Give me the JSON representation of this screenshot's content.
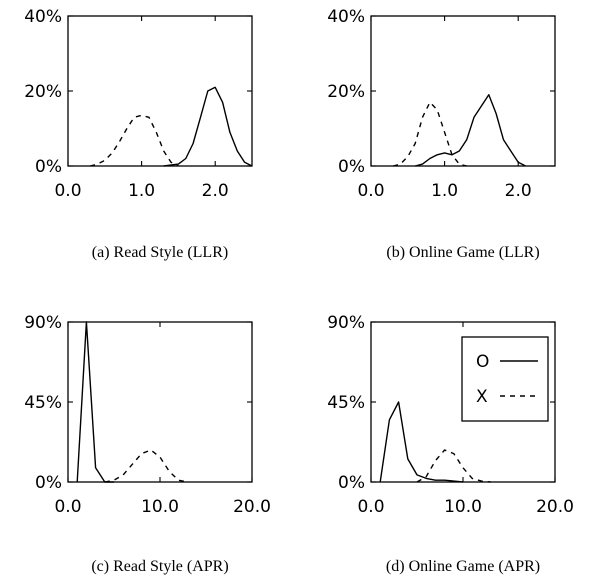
{
  "chart_data": [
    {
      "type": "line",
      "caption": "(a) Read Style (LLR)",
      "xlim": [
        0,
        2.5
      ],
      "ylim": [
        0,
        40
      ],
      "xticks": [
        0,
        1,
        2
      ],
      "xtick_labels": [
        "0.0",
        "1.0",
        "2.0"
      ],
      "yticks": [
        0,
        20,
        40
      ],
      "ytick_labels": [
        "0%",
        "20%",
        "40%"
      ],
      "series": [
        {
          "legend_label": "O",
          "dash": "solid",
          "x": [
            1.3,
            1.5,
            1.6,
            1.7,
            1.8,
            1.9,
            2.0,
            2.1,
            2.2,
            2.3,
            2.4,
            2.5
          ],
          "y": [
            0,
            0.5,
            2,
            6,
            13,
            20,
            21,
            17,
            9,
            4,
            1,
            0
          ]
        },
        {
          "legend_label": "X",
          "dash": "dashed",
          "x": [
            0.3,
            0.4,
            0.5,
            0.6,
            0.7,
            0.8,
            0.9,
            1.0,
            1.1,
            1.2,
            1.3,
            1.4,
            1.5
          ],
          "y": [
            0,
            0.5,
            1.5,
            3.5,
            6.5,
            10,
            13,
            13.5,
            13,
            9,
            4,
            1,
            0
          ]
        }
      ]
    },
    {
      "type": "line",
      "caption": "(b) Online Game (LLR)",
      "xlim": [
        0,
        2.5
      ],
      "ylim": [
        0,
        40
      ],
      "xticks": [
        0,
        1,
        2
      ],
      "xtick_labels": [
        "0.0",
        "1.0",
        "2.0"
      ],
      "yticks": [
        0,
        20,
        40
      ],
      "ytick_labels": [
        "0%",
        "20%",
        "40%"
      ],
      "series": [
        {
          "legend_label": "O",
          "dash": "solid",
          "x": [
            0.6,
            0.7,
            0.8,
            0.9,
            1.0,
            1.1,
            1.2,
            1.3,
            1.4,
            1.5,
            1.6,
            1.7,
            1.8,
            1.9,
            2.0,
            2.1
          ],
          "y": [
            0,
            0.5,
            2,
            3,
            3.5,
            3,
            4,
            7,
            13,
            16,
            19,
            14,
            7,
            4,
            1,
            0
          ]
        },
        {
          "legend_label": "X",
          "dash": "dashed",
          "x": [
            0.3,
            0.4,
            0.5,
            0.6,
            0.7,
            0.8,
            0.9,
            1.0,
            1.1,
            1.2,
            1.3
          ],
          "y": [
            0,
            0.5,
            2.5,
            6,
            13,
            17,
            15,
            9,
            3,
            0.5,
            0
          ]
        }
      ]
    },
    {
      "type": "line",
      "caption": "(c) Read Style (APR)",
      "xlim": [
        0,
        20
      ],
      "ylim": [
        0,
        90
      ],
      "xticks": [
        0,
        10,
        20
      ],
      "xtick_labels": [
        "0.0",
        "10.0",
        "20.0"
      ],
      "yticks": [
        0,
        45,
        90
      ],
      "ytick_labels": [
        "0%",
        "45%",
        "90%"
      ],
      "series": [
        {
          "legend_label": "O",
          "dash": "solid",
          "x": [
            1,
            2,
            3,
            4,
            5
          ],
          "y": [
            0,
            90,
            8,
            0,
            0
          ]
        },
        {
          "legend_label": "X",
          "dash": "dashed",
          "x": [
            4,
            5,
            6,
            7,
            8,
            9,
            10,
            11,
            12,
            13
          ],
          "y": [
            0,
            1,
            4,
            10,
            16,
            18,
            14,
            6,
            1,
            0
          ]
        }
      ]
    },
    {
      "type": "line",
      "caption": "(d) Online Game (APR)",
      "xlim": [
        0,
        20
      ],
      "ylim": [
        0,
        90
      ],
      "xticks": [
        0,
        10,
        20
      ],
      "xtick_labels": [
        "0.0",
        "10.0",
        "20.0"
      ],
      "yticks": [
        0,
        45,
        90
      ],
      "ytick_labels": [
        "0%",
        "45%",
        "90%"
      ],
      "series": [
        {
          "legend_label": "O",
          "dash": "solid",
          "x": [
            1,
            2,
            3,
            4,
            5,
            6,
            7,
            8,
            9,
            10
          ],
          "y": [
            0,
            35,
            45,
            13,
            4,
            2,
            1,
            1,
            0.5,
            0
          ]
        },
        {
          "legend_label": "X",
          "dash": "dashed",
          "x": [
            5,
            6,
            7,
            8,
            9,
            10,
            11,
            12,
            13
          ],
          "y": [
            0,
            3,
            12,
            18,
            16,
            8,
            2,
            0.5,
            0
          ]
        }
      ],
      "legend": {
        "position": "top-right",
        "entries": [
          {
            "label": "O",
            "dash": "solid"
          },
          {
            "label": "X",
            "dash": "dashed"
          }
        ]
      }
    }
  ]
}
